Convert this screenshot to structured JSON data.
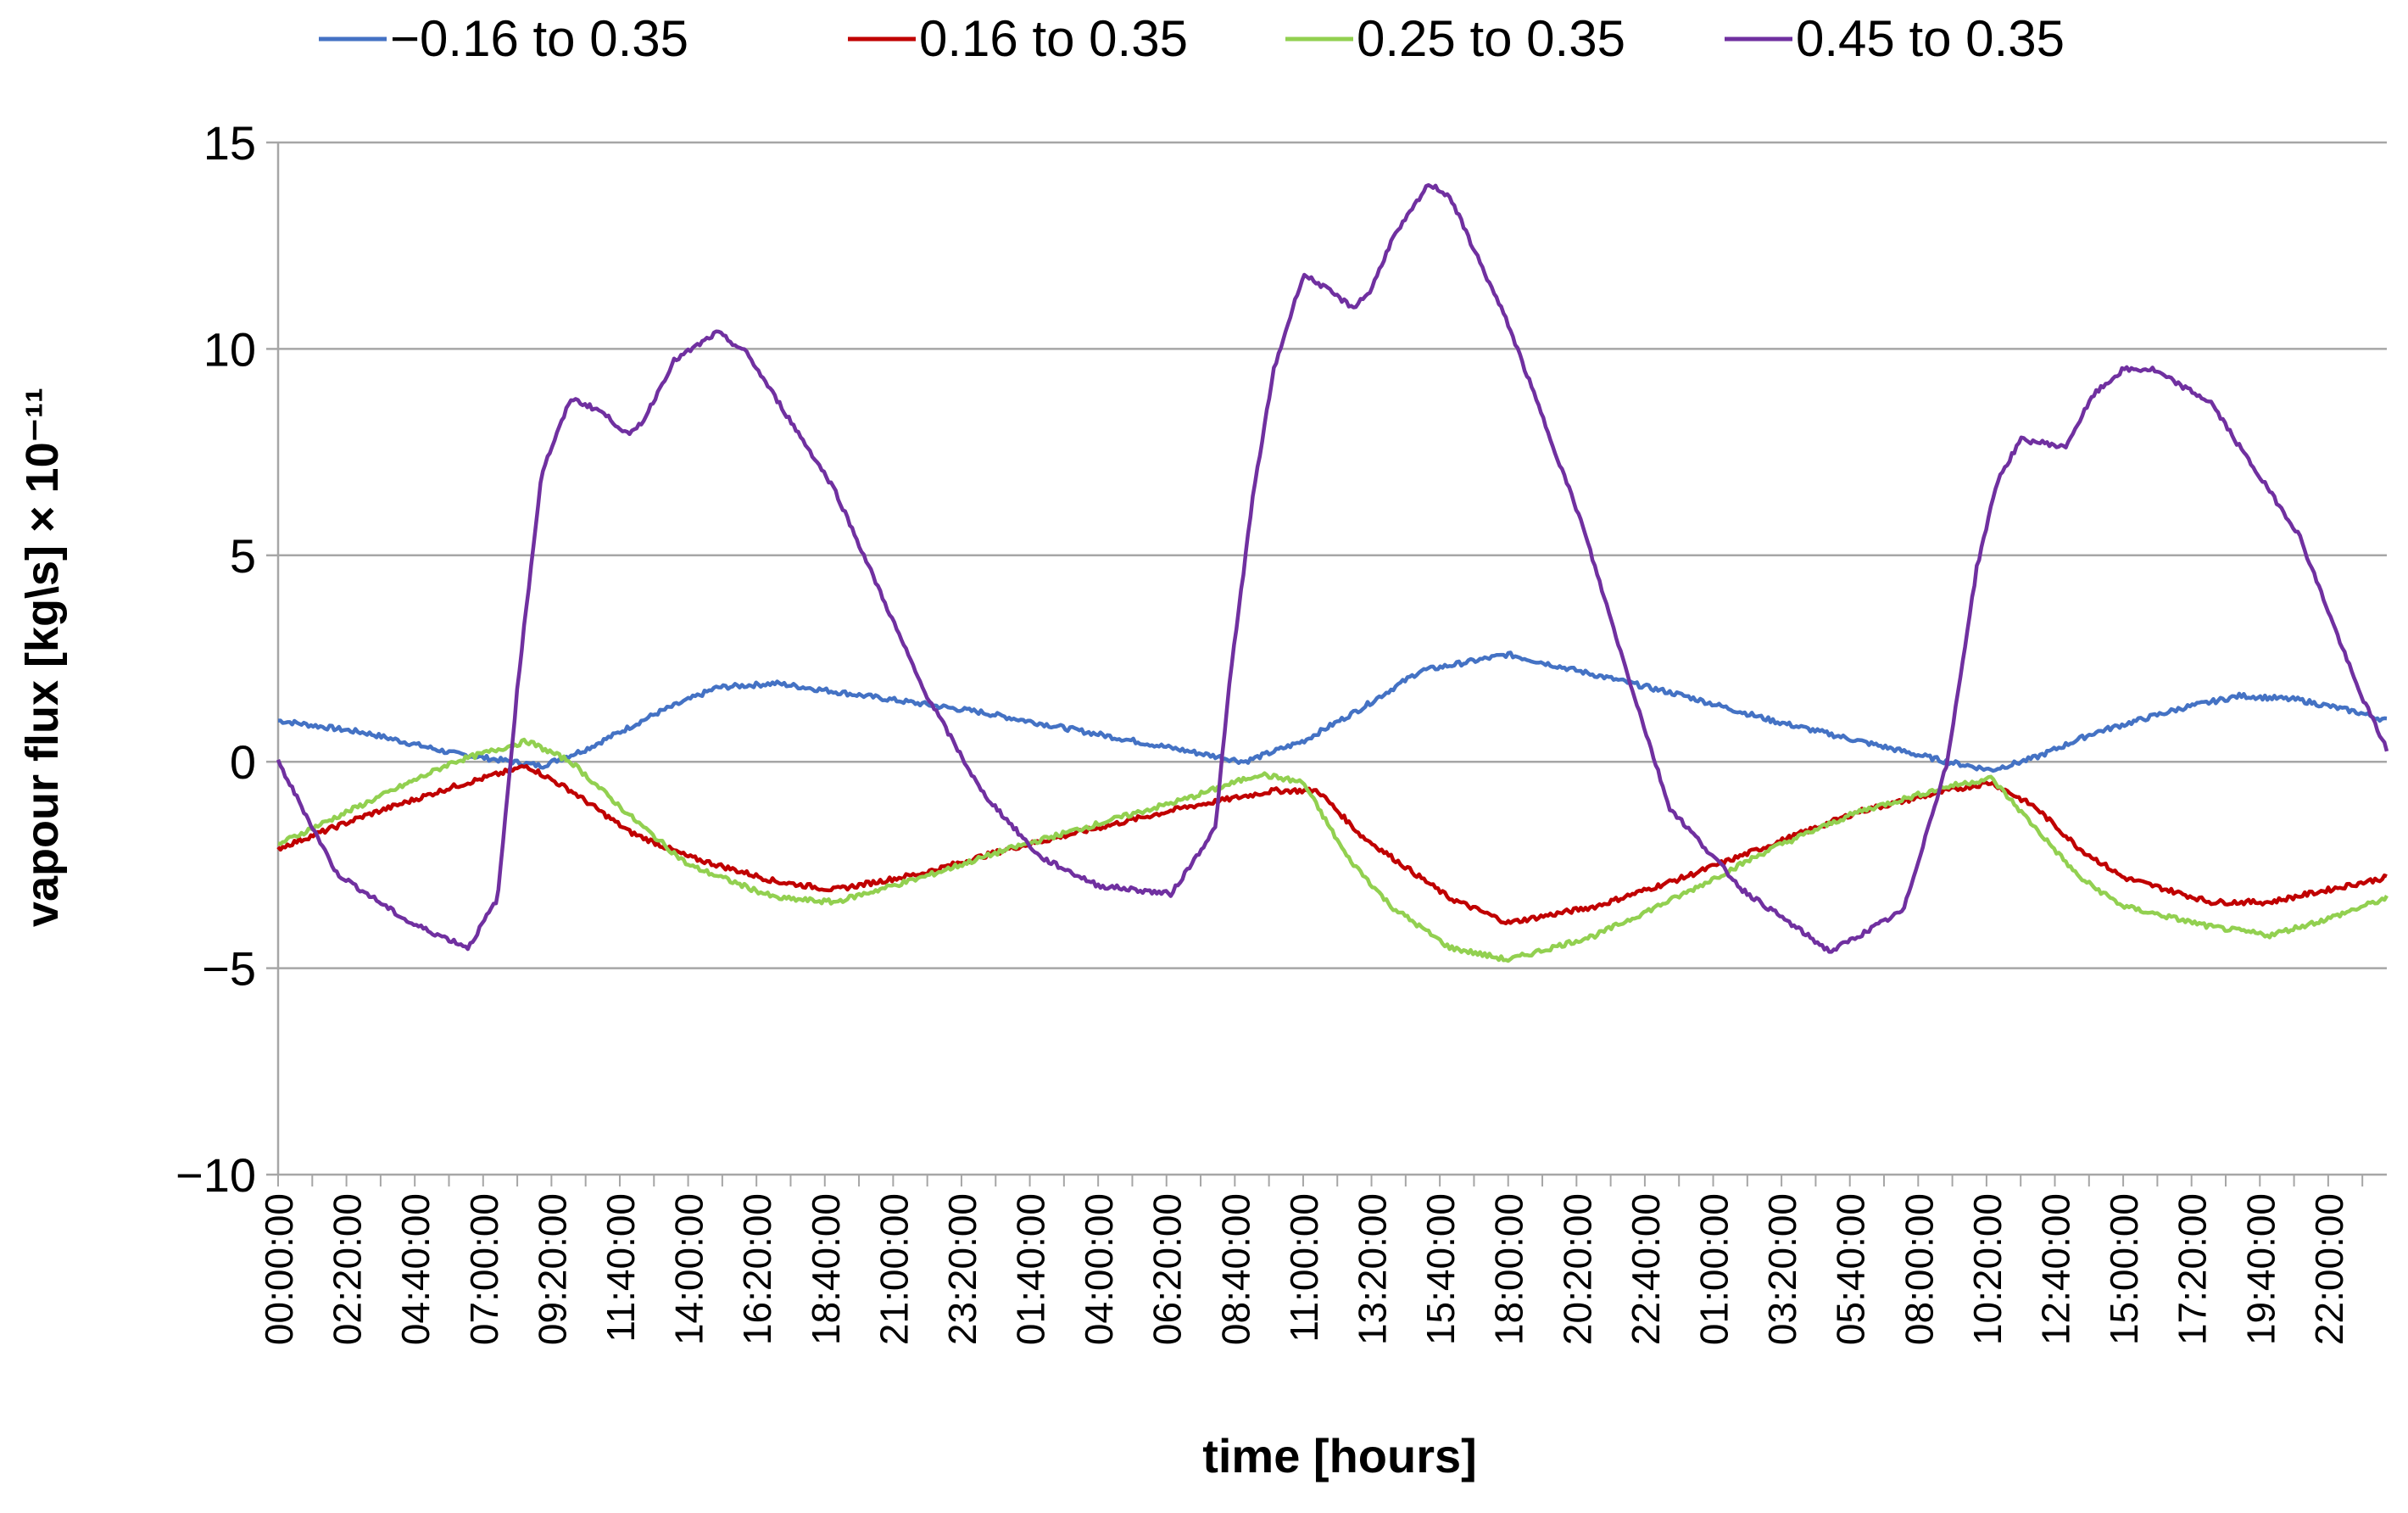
{
  "chart_data": {
    "type": "line",
    "xlabel": "time [hours]",
    "ylabel": "vapour flux [kg\\s] × 10⁻¹¹",
    "ylim": [
      -10,
      15
    ],
    "yticks": [
      15,
      10,
      5,
      0,
      -5,
      -10
    ],
    "ytick_labels": [
      "15",
      "10",
      "5",
      "0",
      "−5",
      "−10"
    ],
    "xlim_hours": [
      0,
      72
    ],
    "xtick_labels": [
      "00:00:00",
      "02:20:00",
      "04:40:00",
      "07:00:00",
      "09:20:00",
      "11:40:00",
      "14:00:00",
      "16:20:00",
      "18:40:00",
      "21:00:00",
      "23:20:00",
      "01:40:00",
      "04:00:00",
      "06:20:00",
      "08:40:00",
      "11:00:00",
      "13:20:00",
      "15:40:00",
      "18:00:00",
      "20:20:00",
      "22:40:00",
      "01:00:00",
      "03:20:00",
      "05:40:00",
      "08:00:00",
      "10:20:00",
      "12:40:00",
      "15:00:00",
      "17:20:00",
      "19:40:00",
      "22:00:00"
    ],
    "xtick_step_hours": 2.3333,
    "grid": "horizontal",
    "legend_position": "top",
    "series": [
      {
        "name": "−0.16 to 0.35",
        "color": "#4472C4",
        "x_hours": [
          0,
          3,
          6,
          8,
          9,
          10.5,
          13,
          15,
          17,
          18,
          21,
          24,
          27,
          30,
          33,
          35,
          37,
          39,
          42,
          45,
          48,
          51,
          54,
          57,
          58.5,
          60,
          62,
          65,
          67,
          69,
          71,
          72
        ],
        "y": [
          1.0,
          0.7,
          0.2,
          0.0,
          -0.1,
          0.3,
          1.2,
          1.8,
          1.9,
          1.8,
          1.5,
          1.2,
          0.8,
          0.4,
          0.0,
          0.5,
          1.3,
          2.2,
          2.6,
          2.1,
          1.6,
          1.0,
          0.5,
          0.0,
          -0.2,
          0.1,
          0.7,
          1.3,
          1.6,
          1.5,
          1.2,
          1.0
        ]
      },
      {
        "name": "0.16 to 0.35",
        "color": "#C00000",
        "x_hours": [
          0,
          3,
          6,
          8.5,
          10,
          12,
          14,
          17,
          19,
          22,
          25,
          28,
          31,
          34,
          35.5,
          37,
          40,
          42,
          45,
          48,
          51,
          54,
          57,
          58.5,
          60,
          61.5,
          63,
          66,
          68,
          70,
          72
        ],
        "y": [
          -2.1,
          -1.3,
          -0.6,
          -0.1,
          -0.7,
          -1.7,
          -2.3,
          -2.9,
          -3.1,
          -2.7,
          -2.1,
          -1.6,
          -1.1,
          -0.7,
          -0.7,
          -1.8,
          -3.3,
          -3.9,
          -3.5,
          -2.8,
          -2.0,
          -1.2,
          -0.7,
          -0.5,
          -1.1,
          -2.1,
          -2.8,
          -3.4,
          -3.4,
          -3.1,
          -2.8
        ]
      },
      {
        "name": "0.25 to 0.35",
        "color": "#92D050",
        "x_hours": [
          0,
          3,
          6,
          8.5,
          10,
          12,
          14,
          17,
          19,
          22,
          25,
          28,
          31,
          33.5,
          35,
          36.5,
          38,
          40,
          42,
          45,
          48,
          51,
          54,
          57,
          58.5,
          60,
          61.5,
          63,
          66,
          68,
          70,
          72
        ],
        "y": [
          -2.0,
          -1.0,
          0.0,
          0.5,
          0.0,
          -1.3,
          -2.5,
          -3.3,
          -3.4,
          -2.8,
          -2.1,
          -1.5,
          -0.9,
          -0.3,
          -0.5,
          -2.3,
          -3.5,
          -4.5,
          -4.8,
          -4.2,
          -3.2,
          -2.1,
          -1.2,
          -0.6,
          -0.4,
          -1.6,
          -2.8,
          -3.5,
          -4.0,
          -4.2,
          -3.8,
          -3.3
        ]
      },
      {
        "name": "0.45 to 0.35",
        "color": "#7030A0",
        "x_hours": [
          0,
          2,
          4.5,
          6.5,
          7.5,
          8.2,
          9,
          10,
          11,
          12,
          12.5,
          13.5,
          15,
          16,
          19,
          22,
          24,
          26,
          28,
          30.5,
          32,
          32.5,
          33.3,
          34,
          35,
          35.5,
          36.7,
          37.3,
          38,
          39.3,
          40,
          42,
          44.5,
          46,
          47.5,
          50,
          53,
          55.5,
          57,
          58,
          58.7,
          59.5,
          60.5,
          61,
          62,
          63,
          64,
          66,
          67,
          69,
          71,
          72
        ],
        "y": [
          0.0,
          -2.7,
          -3.9,
          -4.5,
          -3.3,
          2.0,
          7.0,
          8.8,
          8.5,
          7.9,
          8.3,
          9.7,
          10.4,
          9.9,
          6.6,
          1.8,
          -0.7,
          -2.3,
          -3.0,
          -3.2,
          -1.6,
          2.0,
          6.5,
          9.5,
          11.8,
          11.6,
          11.0,
          11.4,
          12.6,
          14.0,
          13.7,
          10.6,
          5.8,
          2.3,
          -1.1,
          -3.1,
          -4.6,
          -3.6,
          0.0,
          4.7,
          6.8,
          7.8,
          7.7,
          7.6,
          8.9,
          9.5,
          9.5,
          8.7,
          7.6,
          5.5,
          1.8,
          0.3
        ]
      }
    ]
  }
}
